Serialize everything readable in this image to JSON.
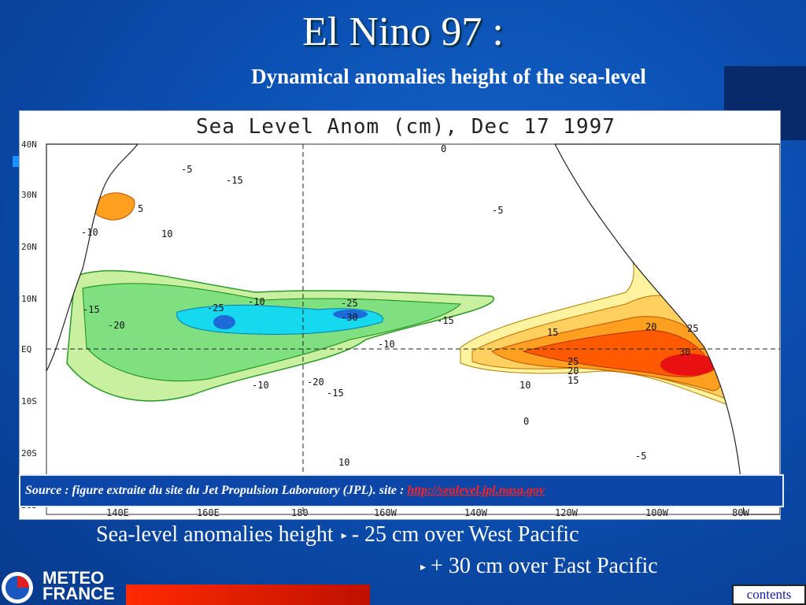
{
  "slide": {
    "title": "El Nino 97 :",
    "subtitle": "Dynamical anomalies height of the sea-level"
  },
  "map": {
    "title": "Sea Level Anom (cm), Dec 17 1997",
    "lat_labels": [
      "40N",
      "30N",
      "20N",
      "10N",
      "EQ",
      "10S",
      "20S",
      "30S"
    ],
    "lon_labels": [
      "140E",
      "160E",
      "180",
      "160W",
      "140W",
      "120W",
      "100W",
      "80W"
    ],
    "contour_labels": [
      "-5",
      "-15",
      "-10",
      "10",
      "0",
      "-10",
      "-15",
      "-25",
      "-20",
      "-25",
      "-30",
      "-15",
      "-10",
      "-20",
      "-5",
      "10",
      "15",
      "20",
      "25",
      "30",
      "25",
      "20",
      "15",
      "-15",
      "-10",
      "5",
      "-5",
      "0",
      "10"
    ],
    "colors": {
      "negative_strong": "#1e6ad8",
      "negative_mid": "#16d8ef",
      "negative_light": "#7fe07f",
      "negative_faint": "#c8f0a0",
      "positive_faint": "#fff3a0",
      "positive_light": "#ffd060",
      "positive_mid": "#ffa020",
      "positive_strong": "#ff5a00",
      "positive_max": "#e81010"
    }
  },
  "source": {
    "text": "Source : figure extraite du site du Jet Propulsion  Laboratory (JPL).  site : ",
    "link_text": "http://sealevel.jpl.nasa.gov"
  },
  "summary": {
    "line1_label": "Sea-level anomalies height",
    "line1_value": "- 25 cm over West Pacific",
    "line2_value": "+ 30 cm over East Pacific",
    "arrow_glyph": "▸"
  },
  "footer": {
    "logo_line1": "METEO",
    "logo_line2": "FRANCE",
    "contents_label": "contents"
  }
}
